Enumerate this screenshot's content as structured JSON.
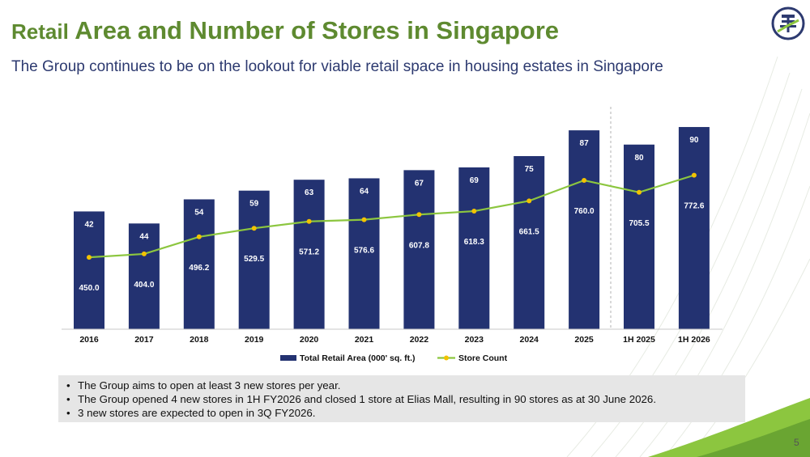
{
  "header": {
    "title_prefix": "Retail",
    "title_rest": "Area and Number of Stores in Singapore",
    "subtitle": "The Group continues to be on the lookout for viable retail space in housing estates in Singapore"
  },
  "logo": {
    "icon": "company-logo-icon",
    "color": "#2d3a70"
  },
  "chart_data": {
    "type": "bar",
    "categories": [
      "2016",
      "2017",
      "2018",
      "2019",
      "2020",
      "2021",
      "2022",
      "2023",
      "2024",
      "2025",
      "1H 2025",
      "1H 2026"
    ],
    "series": [
      {
        "name": "Total Retail Area (000' sq. ft.)",
        "type": "bar",
        "color": "#233271",
        "values": [
          450.0,
          404.0,
          496.2,
          529.5,
          571.2,
          576.6,
          607.8,
          618.3,
          661.5,
          760.0,
          705.5,
          772.6
        ]
      },
      {
        "name": "Store Count",
        "type": "line",
        "color": "#8cc63f",
        "marker_color": "#f2c200",
        "values": [
          42,
          44,
          54,
          59,
          63,
          64,
          67,
          69,
          75,
          87,
          80,
          90
        ]
      }
    ],
    "bar_value_labels": [
      "450.0",
      "404.0",
      "496.2",
      "529.5",
      "571.2",
      "576.6",
      "607.8",
      "618.3",
      "661.5",
      "760.0",
      "705.5",
      "772.6"
    ],
    "line_value_labels": [
      "42",
      "44",
      "54",
      "59",
      "63",
      "64",
      "67",
      "69",
      "75",
      "87",
      "80",
      "90"
    ],
    "title": "",
    "xlabel": "",
    "ylabel": "",
    "bar_ylim": [
      0,
      850
    ],
    "line_ylim": [
      0,
      130
    ],
    "legend_position": "bottom",
    "grid": false,
    "divider_after": "2025"
  },
  "bullets": [
    "The Group aims to open at least 3 new stores per year.",
    "The Group opened 4 new stores in 1H FY2026 and closed 1 store at Elias Mall, resulting in 90 stores as at 30 June 2026.",
    "3 new stores are expected to open in 3Q FY2026."
  ],
  "page_number": "5",
  "colors": {
    "title_green": "#5e8a30",
    "navy": "#233271",
    "line_green": "#8cc63f",
    "marker_yellow": "#f2c200",
    "bullet_bg": "#e6e6e6"
  }
}
